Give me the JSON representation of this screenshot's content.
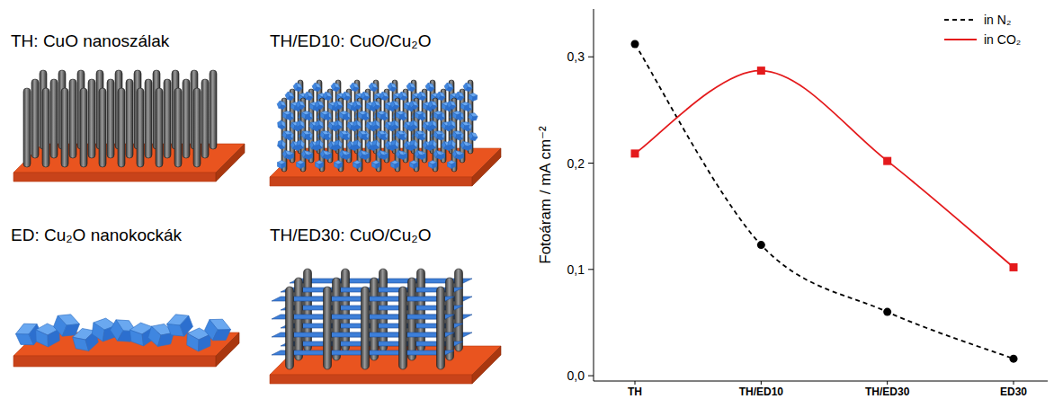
{
  "chart_data": {
    "type": "line",
    "y_label": "Fotoáram / mA cm⁻²",
    "categories": [
      "TH",
      "TH/ED10",
      "TH/ED30",
      "ED30"
    ],
    "series": [
      {
        "name": "in N₂",
        "color": "#000000",
        "line_style": "dashed",
        "marker": "circle",
        "values": [
          0.312,
          0.123,
          0.06,
          0.016
        ]
      },
      {
        "name": "in CO₂",
        "color": "#e41a1c",
        "line_style": "solid",
        "marker": "square",
        "values": [
          0.209,
          0.287,
          0.202,
          0.102
        ]
      }
    ],
    "ylim": [
      -0.005,
      0.345
    ],
    "yticks": [
      {
        "value": 0,
        "label": "0,0"
      },
      {
        "value": 0.1,
        "label": "0,1"
      },
      {
        "value": 0.2,
        "label": "0,2"
      },
      {
        "value": 0.3,
        "label": "0,3"
      }
    ],
    "grid": false,
    "legend": "top-right"
  },
  "diagram": {
    "panels": [
      {
        "id": "TH",
        "label": "TH: CuO nanoszálak"
      },
      {
        "id": "TH/ED10",
        "label": "TH/ED10: CuO/Cu₂O"
      },
      {
        "id": "ED",
        "label": "ED: Cu₂O nanokockák"
      },
      {
        "id": "TH/ED30",
        "label": "TH/ED30: CuO/Cu₂O"
      }
    ]
  }
}
